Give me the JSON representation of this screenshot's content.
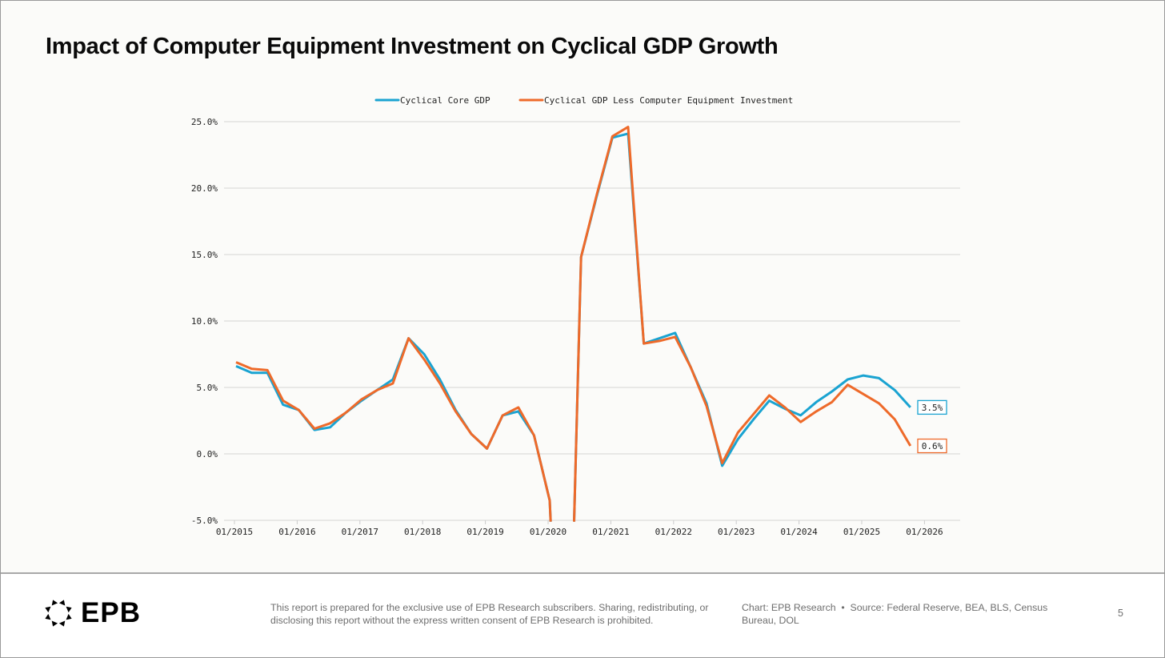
{
  "title": "Impact of Computer Equipment Investment on Cyclical GDP Growth",
  "footer": {
    "logo_text": "EPB",
    "disclaimer": "This report is prepared for the exclusive use of EPB Research subscribers. Sharing, redistributing, or disclosing this report without the express written consent of EPB Research is prohibited.",
    "chart_credit": "Chart: EPB Research",
    "source": "Source: Federal Reserve, BEA, BLS, Census Bureau, DOL",
    "page_number": "5"
  },
  "chart_data": {
    "type": "line",
    "title": "Impact of Computer Equipment Investment on Cyclical GDP Growth",
    "xlabel": "",
    "ylabel": "",
    "ylim": [
      -5,
      25
    ],
    "yticks": [
      25,
      20,
      15,
      10,
      5,
      0,
      -5
    ],
    "ytick_labels": [
      "25.0%",
      "20.0%",
      "15.0%",
      "10.0%",
      "5.0%",
      "0.0%",
      "-5.0%"
    ],
    "xtick_labels": [
      "01/2015",
      "01/2016",
      "01/2017",
      "01/2018",
      "01/2019",
      "01/2020",
      "01/2021",
      "01/2022",
      "01/2023",
      "01/2024",
      "01/2025",
      "01/2026"
    ],
    "x_start": "2015-Q1",
    "frequency": "quarterly",
    "grid": true,
    "legend_position": "top-center",
    "series": [
      {
        "name": "Cyclical Core GDP",
        "color": "#1aa3d1",
        "end_label": "3.5%",
        "values": [
          6.6,
          6.1,
          6.1,
          3.7,
          3.3,
          1.8,
          2.0,
          3.1,
          4.0,
          4.8,
          5.6,
          8.7,
          7.5,
          5.6,
          3.3,
          1.5,
          0.4,
          2.9,
          3.2,
          1.4,
          -3.5,
          -30,
          14.8,
          19.4,
          23.8,
          24.1,
          8.3,
          8.7,
          9.1,
          6.5,
          3.8,
          -0.9,
          1.1,
          2.6,
          4.0,
          3.4,
          2.9,
          3.9,
          4.7,
          5.6,
          5.9,
          5.7,
          4.8,
          3.5
        ]
      },
      {
        "name": "Cyclical GDP Less Computer Equipment Investment",
        "color": "#ee6a2a",
        "end_label": "0.6%",
        "values": [
          6.9,
          6.4,
          6.3,
          4.0,
          3.3,
          1.9,
          2.3,
          3.1,
          4.1,
          4.8,
          5.3,
          8.7,
          7.1,
          5.3,
          3.2,
          1.5,
          0.4,
          2.9,
          3.5,
          1.4,
          -3.5,
          -30,
          14.8,
          19.5,
          23.9,
          24.6,
          8.3,
          8.5,
          8.8,
          6.5,
          3.6,
          -0.7,
          1.6,
          3.0,
          4.4,
          3.5,
          2.4,
          3.2,
          3.9,
          5.2,
          4.5,
          3.8,
          2.6,
          0.6
        ]
      }
    ]
  }
}
